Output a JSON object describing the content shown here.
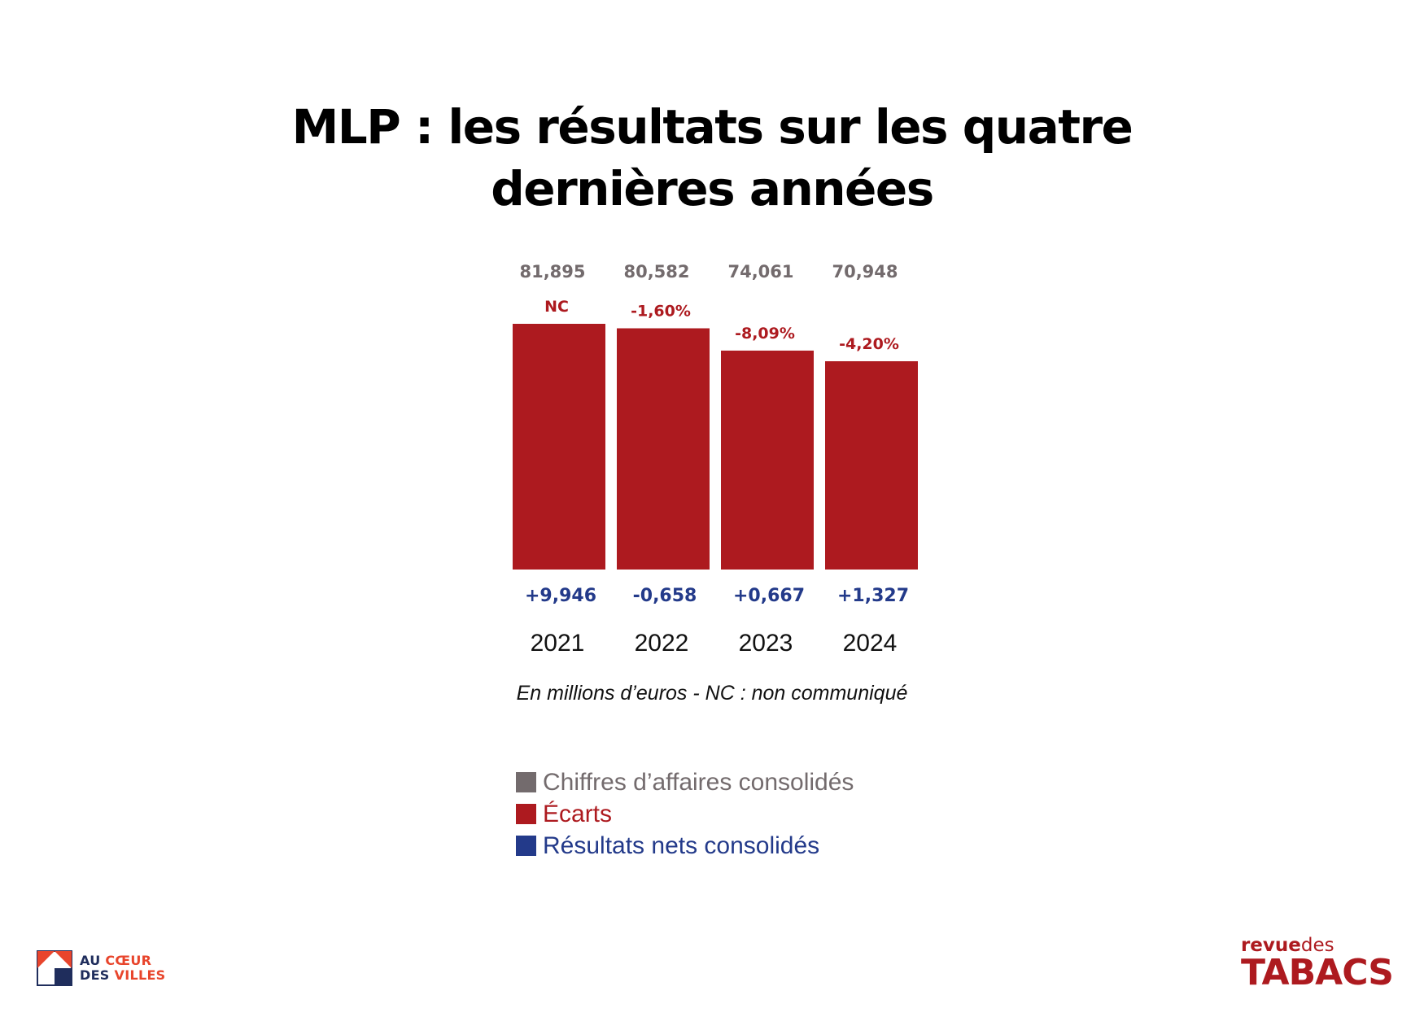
{
  "page": {
    "title": "MLP : les résultats sur les quatre dernières années",
    "note": "En millions d’euros - NC : non communiqué"
  },
  "colors": {
    "revenue": "#736b6d",
    "gap": "#ad1a1f",
    "net": "#233a8a"
  },
  "chart_data": {
    "type": "bar",
    "title": "MLP : les résultats sur les quatre dernières années",
    "categories": [
      "2021",
      "2022",
      "2023",
      "2024"
    ],
    "series": [
      {
        "name": "Chiffres d’affaires consolidés",
        "values": [
          81.895,
          80.582,
          74.061,
          70.948
        ],
        "labels": [
          "81,895",
          "80,582",
          "74,061",
          "70,948"
        ]
      },
      {
        "name": "Écarts",
        "values": [
          null,
          -1.6,
          -8.09,
          -4.2
        ],
        "labels": [
          "NC",
          "-1,60%",
          "-8,09%",
          "-4,20%"
        ]
      },
      {
        "name": "Résultats nets consolidés",
        "values": [
          9.946,
          -0.658,
          0.667,
          1.327
        ],
        "labels": [
          "+9,946",
          "-0,658",
          "+0,667",
          "+1,327"
        ]
      }
    ],
    "xlabel": "",
    "ylabel": "",
    "unit": "En millions d’euros",
    "grid": false,
    "legend": "bottom"
  },
  "legend": [
    {
      "label": "Chiffres d’affaires consolidés",
      "color": "#736b6d"
    },
    {
      "label": "Écarts",
      "color": "#ad1a1f"
    },
    {
      "label": "Résultats nets consolidés",
      "color": "#233a8a"
    }
  ],
  "logos": {
    "left": {
      "line1_a": "AU",
      "line1_b": "CŒUR",
      "line2_a": "DES",
      "line2_b": "VILLES"
    },
    "right": {
      "top_a": "revue",
      "top_b": "des",
      "bottom": "TABACS"
    }
  }
}
